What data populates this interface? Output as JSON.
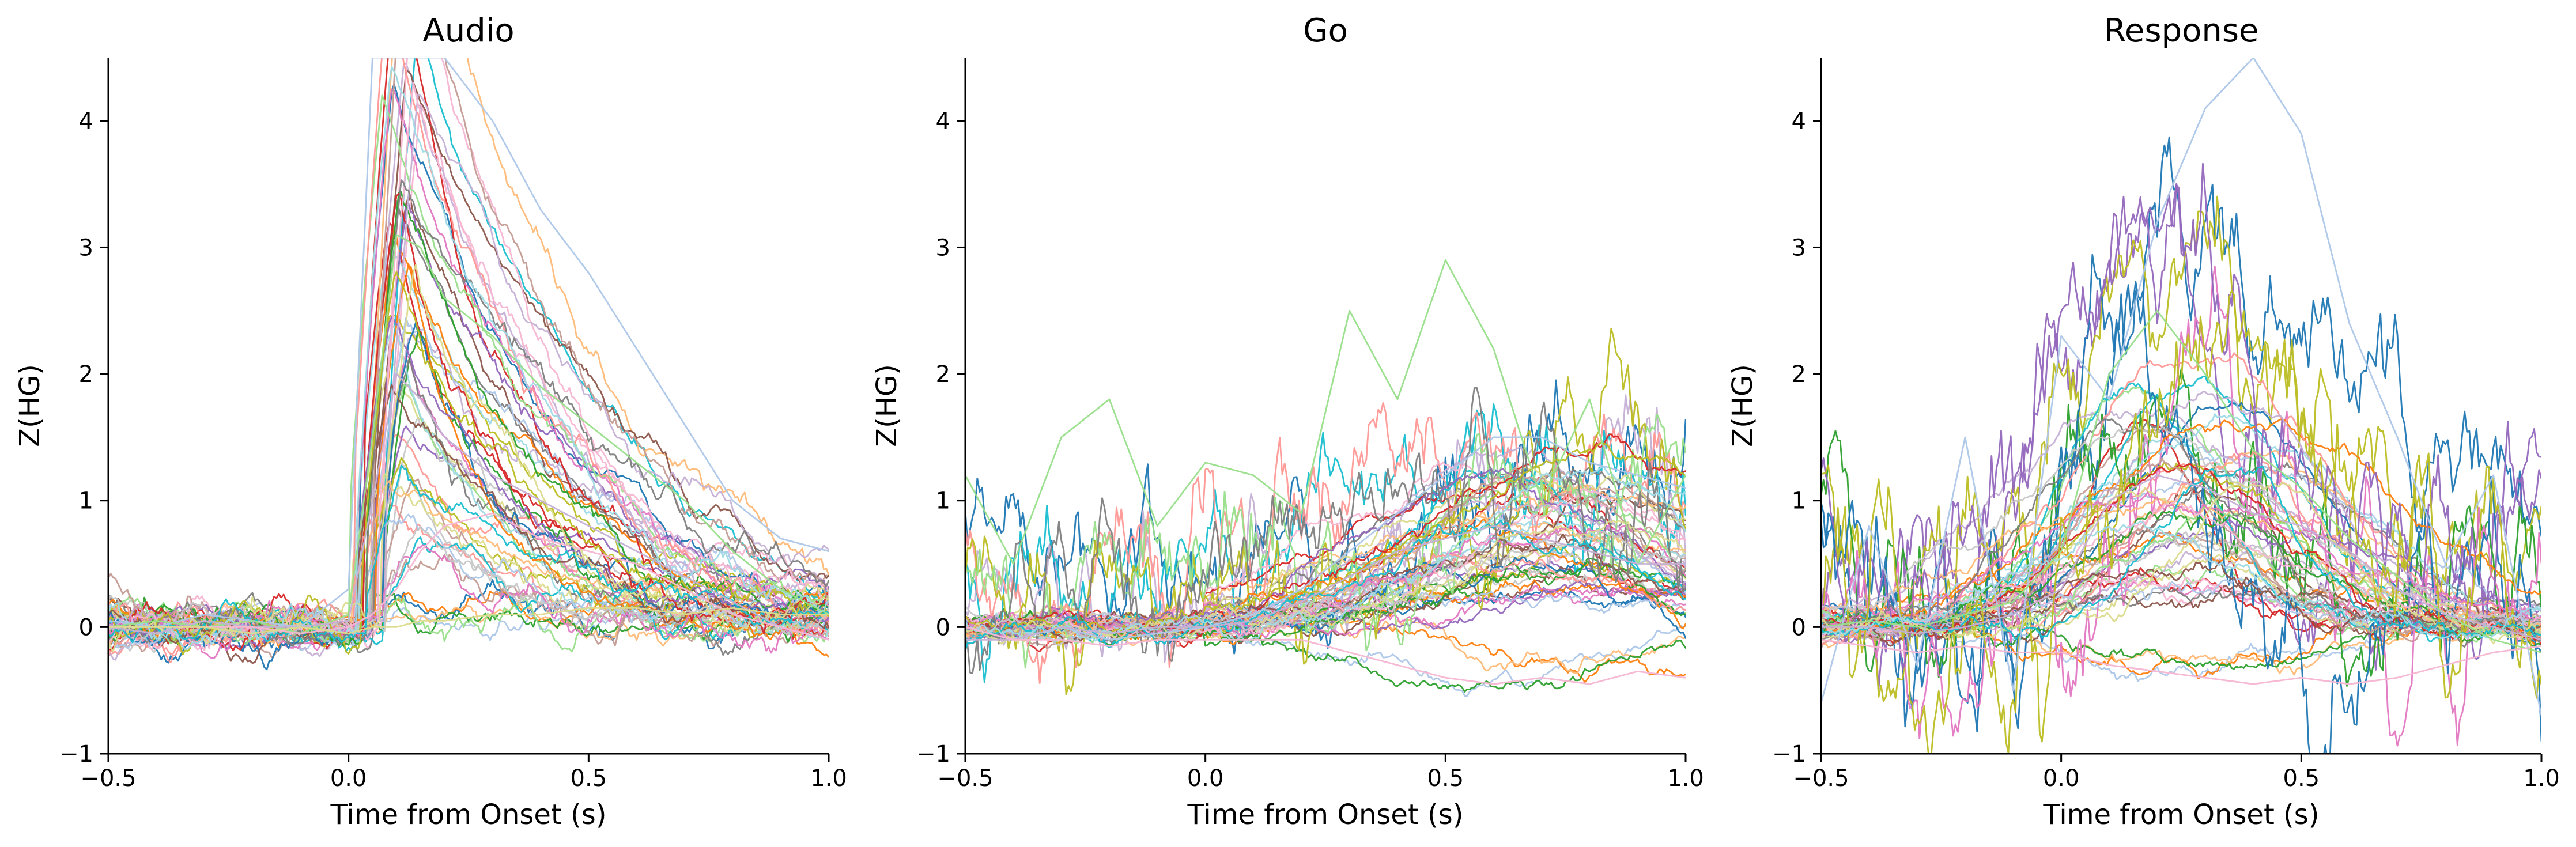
{
  "colors": [
    "#1f77b4",
    "#aec7e8",
    "#ff7f0e",
    "#ffbb78",
    "#2ca02c",
    "#98df8a",
    "#d62728",
    "#ff9896",
    "#9467bd",
    "#c5b0d5",
    "#8c564b",
    "#c49c94",
    "#e377c2",
    "#f7b6d2",
    "#7f7f7f",
    "#c7c7c7",
    "#bcbd22",
    "#dbdb8d",
    "#17becf",
    "#9edae5"
  ],
  "chart_data": [
    {
      "type": "line",
      "title": "Audio",
      "xlabel": "Time from Onset (s)",
      "ylabel": "Z(HG)",
      "xlim": [
        -0.5,
        1.0
      ],
      "ylim": [
        -1,
        4.5
      ],
      "xticks": [
        -0.5,
        0.0,
        0.5,
        1.0
      ],
      "xtick_labels": [
        "−0.5",
        "0.0",
        "0.5",
        "1.0"
      ],
      "yticks": [
        -1,
        0,
        1,
        2,
        3,
        4
      ],
      "ytick_labels": [
        "−1",
        "0",
        "1",
        "2",
        "3",
        "4"
      ],
      "grid": false,
      "legend": "none",
      "n_series": 60,
      "x": [
        -0.5,
        -0.4,
        -0.3,
        -0.2,
        -0.1,
        0.0,
        0.05,
        0.1,
        0.15,
        0.2,
        0.3,
        0.4,
        0.5,
        0.6,
        0.7,
        0.8,
        0.9,
        1.0
      ],
      "representative_series": [
        {
          "values": [
            0.05,
            0.0,
            0.1,
            0.05,
            0.0,
            0.3,
            4.5,
            4.5,
            4.5,
            4.5,
            4.0,
            3.3,
            2.8,
            2.2,
            1.6,
            1.0,
            0.7,
            0.6
          ]
        },
        {
          "values": [
            0.0,
            0.05,
            0.0,
            0.05,
            -0.05,
            0.1,
            1.5,
            3.1,
            3.0,
            2.6,
            2.3,
            1.9,
            1.6,
            1.3,
            1.0,
            0.6,
            0.3,
            0.1
          ]
        },
        {
          "values": [
            0.0,
            -0.05,
            0.05,
            0.0,
            0.0,
            0.05,
            1.0,
            2.0,
            1.8,
            1.5,
            1.2,
            1.0,
            0.8,
            0.6,
            0.4,
            0.2,
            0.0,
            -0.1
          ]
        },
        {
          "values": [
            0.0,
            0.0,
            0.0,
            0.0,
            -0.05,
            0.0,
            0.1,
            0.3,
            0.6,
            0.8,
            0.9,
            0.7,
            0.6,
            0.5,
            0.3,
            0.1,
            0.0,
            -0.1
          ]
        },
        {
          "values": [
            0.0,
            0.0,
            0.0,
            -0.05,
            0.0,
            -0.05,
            0.0,
            0.0,
            0.05,
            0.05,
            0.1,
            0.1,
            0.15,
            0.15,
            0.1,
            0.15,
            0.1,
            0.1
          ]
        }
      ]
    },
    {
      "type": "line",
      "title": "Go",
      "xlabel": "Time from Onset (s)",
      "ylabel": "Z(HG)",
      "xlim": [
        -0.5,
        1.0
      ],
      "ylim": [
        -1,
        4.5
      ],
      "xticks": [
        -0.5,
        0.0,
        0.5,
        1.0
      ],
      "xtick_labels": [
        "−0.5",
        "0.0",
        "0.5",
        "1.0"
      ],
      "yticks": [
        -1,
        0,
        1,
        2,
        3,
        4
      ],
      "ytick_labels": [
        "−1",
        "0",
        "1",
        "2",
        "3",
        "4"
      ],
      "grid": false,
      "legend": "none",
      "n_series": 60,
      "x": [
        -0.5,
        -0.4,
        -0.3,
        -0.2,
        -0.1,
        0.0,
        0.1,
        0.2,
        0.3,
        0.4,
        0.5,
        0.6,
        0.7,
        0.8,
        0.9,
        1.0
      ],
      "representative_series": [
        {
          "values": [
            0.0,
            -0.1,
            0.0,
            -0.1,
            -0.05,
            0.0,
            0.1,
            0.3,
            0.6,
            0.9,
            1.2,
            1.5,
            1.5,
            1.3,
            1.2,
            1.1
          ]
        },
        {
          "values": [
            1.2,
            0.5,
            1.5,
            1.8,
            0.8,
            1.3,
            1.2,
            0.9,
            2.5,
            1.8,
            2.9,
            2.2,
            1.0,
            1.8,
            0.5,
            1.2
          ]
        },
        {
          "values": [
            -0.1,
            -0.1,
            0.0,
            -0.05,
            0.0,
            0.0,
            0.05,
            0.2,
            0.4,
            0.6,
            0.7,
            0.8,
            0.7,
            0.6,
            0.5,
            0.5
          ]
        },
        {
          "values": [
            0.0,
            -0.1,
            -0.1,
            -0.15,
            -0.1,
            -0.1,
            -0.1,
            -0.1,
            -0.2,
            -0.3,
            -0.4,
            -0.45,
            -0.4,
            -0.45,
            -0.35,
            -0.4
          ]
        }
      ]
    },
    {
      "type": "line",
      "title": "Response",
      "xlabel": "Time from Onset (s)",
      "ylabel": "Z(HG)",
      "xlim": [
        -0.5,
        1.0
      ],
      "ylim": [
        -1,
        4.5
      ],
      "xticks": [
        -0.5,
        0.0,
        0.5,
        1.0
      ],
      "xtick_labels": [
        "−0.5",
        "0.0",
        "0.5",
        "1.0"
      ],
      "yticks": [
        -1,
        0,
        1,
        2,
        3,
        4
      ],
      "ytick_labels": [
        "−1",
        "0",
        "1",
        "2",
        "3",
        "4"
      ],
      "grid": false,
      "legend": "none",
      "n_series": 60,
      "x": [
        -0.5,
        -0.4,
        -0.3,
        -0.2,
        -0.1,
        0.0,
        0.1,
        0.2,
        0.3,
        0.4,
        0.5,
        0.6,
        0.7,
        0.8,
        0.9,
        1.0
      ],
      "representative_series": [
        {
          "values": [
            -0.6,
            0.8,
            -0.3,
            1.5,
            -0.5,
            2.3,
            1.8,
            3.2,
            4.1,
            4.5,
            3.9,
            2.4,
            1.5,
            0.5,
            1.2,
            -0.7
          ]
        },
        {
          "values": [
            0.0,
            0.05,
            0.0,
            0.1,
            0.2,
            0.6,
            2.0,
            2.5,
            2.0,
            1.4,
            1.1,
            0.7,
            0.4,
            0.1,
            -0.1,
            -0.2
          ]
        },
        {
          "values": [
            0.0,
            0.0,
            -0.05,
            0.0,
            0.1,
            0.3,
            1.0,
            1.2,
            1.1,
            0.9,
            0.8,
            0.6,
            0.3,
            0.1,
            0.0,
            -0.1
          ]
        },
        {
          "values": [
            -0.1,
            -0.15,
            -0.2,
            -0.15,
            -0.2,
            -0.2,
            -0.3,
            -0.35,
            -0.4,
            -0.45,
            -0.4,
            -0.45,
            -0.4,
            -0.3,
            -0.2,
            -0.15
          ]
        }
      ]
    }
  ]
}
